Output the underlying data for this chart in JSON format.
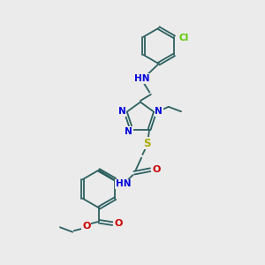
{
  "background_color": "#ebebeb",
  "fig_size": [
    3.0,
    3.0
  ],
  "dpi": 100,
  "bond_color": "#2d6060",
  "atoms": {
    "colors": {
      "N": "#0000dd",
      "O": "#cc0000",
      "S": "#aaaa00",
      "Cl": "#55cc00",
      "C": "#2d6060",
      "H": "#2d6060",
      "NH": "#2d6060"
    }
  }
}
